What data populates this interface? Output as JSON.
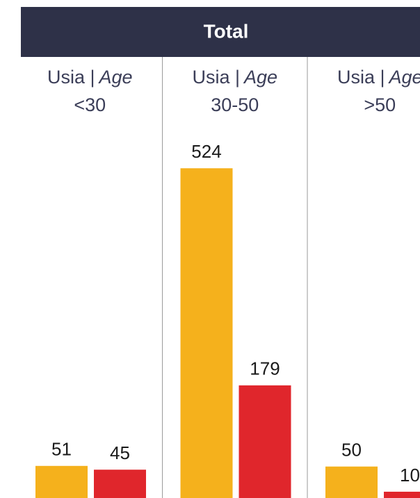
{
  "chart_data": {
    "type": "grouped-bar",
    "title": "Total",
    "groups": [
      {
        "label": "Usia |",
        "label_italic": "Age",
        "range": "<30"
      },
      {
        "label": "Usia |",
        "label_italic": "Age",
        "range": "30-50"
      },
      {
        "label": "Usia |",
        "label_italic": "Age",
        "range": ">50"
      }
    ],
    "series": [
      {
        "color": "#f5b11c",
        "values": [
          51,
          524,
          50
        ]
      },
      {
        "color": "#e0262c",
        "values": [
          45,
          179,
          10
        ]
      }
    ]
  }
}
